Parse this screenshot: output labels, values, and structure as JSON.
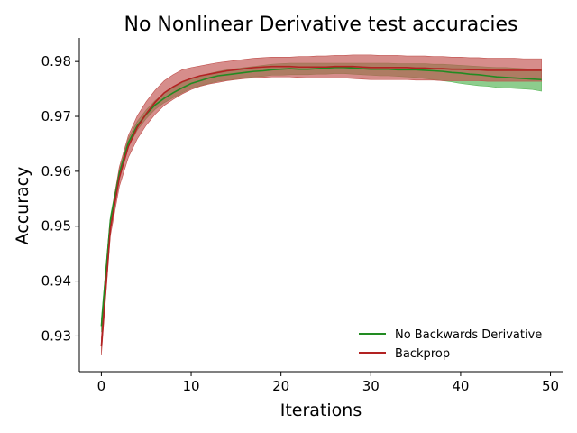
{
  "chart_data": {
    "type": "line",
    "title": "No Nonlinear Derivative test accuracies",
    "xlabel": "Iterations",
    "ylabel": "Accuracy",
    "xlim": [
      -2.45,
      51.45
    ],
    "ylim": [
      0.9235,
      0.9843
    ],
    "xticks": [
      0,
      10,
      20,
      30,
      40,
      50
    ],
    "yticks": [
      0.93,
      0.94,
      0.95,
      0.96,
      0.97,
      0.98
    ],
    "xtick_labels": [
      "0",
      "10",
      "20",
      "30",
      "40",
      "50"
    ],
    "ytick_labels": [
      "0.93",
      "0.94",
      "0.95",
      "0.96",
      "0.97",
      "0.98"
    ],
    "grid": false,
    "legend_position": "lower-right",
    "x": [
      0,
      1,
      2,
      3,
      4,
      5,
      6,
      7,
      8,
      9,
      10,
      11,
      12,
      13,
      14,
      15,
      16,
      17,
      18,
      19,
      20,
      21,
      22,
      23,
      24,
      25,
      26,
      27,
      28,
      29,
      30,
      31,
      32,
      33,
      34,
      35,
      36,
      37,
      38,
      39,
      40,
      41,
      42,
      43,
      44,
      45,
      46,
      47,
      48,
      49
    ],
    "series": [
      {
        "name": "No Backwards Derivative",
        "color": "#228B22",
        "band_color": "#5cb85c",
        "values": [
          0.9318,
          0.951,
          0.9596,
          0.9652,
          0.9683,
          0.9704,
          0.9721,
          0.9733,
          0.9743,
          0.9752,
          0.976,
          0.9765,
          0.977,
          0.9774,
          0.9776,
          0.9778,
          0.978,
          0.9782,
          0.9783,
          0.9785,
          0.9786,
          0.9787,
          0.9786,
          0.9786,
          0.9787,
          0.9788,
          0.9789,
          0.9789,
          0.9788,
          0.9787,
          0.9786,
          0.9786,
          0.9786,
          0.9785,
          0.9785,
          0.9785,
          0.9784,
          0.9783,
          0.9782,
          0.978,
          0.9779,
          0.9777,
          0.9776,
          0.9774,
          0.9772,
          0.9771,
          0.977,
          0.9769,
          0.9768,
          0.9767
        ],
        "lower": [
          0.9307,
          0.9503,
          0.959,
          0.9645,
          0.9675,
          0.9696,
          0.9713,
          0.9725,
          0.9734,
          0.9743,
          0.9751,
          0.9756,
          0.976,
          0.9764,
          0.9766,
          0.9768,
          0.977,
          0.9772,
          0.9773,
          0.9775,
          0.9775,
          0.9776,
          0.9776,
          0.9776,
          0.9777,
          0.9777,
          0.9778,
          0.9778,
          0.9777,
          0.9776,
          0.9775,
          0.9774,
          0.9774,
          0.9773,
          0.9772,
          0.9771,
          0.9769,
          0.9767,
          0.9765,
          0.9763,
          0.976,
          0.9758,
          0.9756,
          0.9755,
          0.9753,
          0.9752,
          0.9751,
          0.975,
          0.9749,
          0.9746
        ],
        "upper": [
          0.9332,
          0.9518,
          0.9603,
          0.966,
          0.9691,
          0.9712,
          0.9729,
          0.9742,
          0.9752,
          0.9761,
          0.9768,
          0.9773,
          0.9778,
          0.9782,
          0.9785,
          0.9787,
          0.9789,
          0.9791,
          0.9793,
          0.9795,
          0.9796,
          0.9797,
          0.9797,
          0.9797,
          0.9797,
          0.9797,
          0.9797,
          0.9797,
          0.9797,
          0.9797,
          0.9797,
          0.9797,
          0.9797,
          0.9796,
          0.9796,
          0.9796,
          0.9796,
          0.9795,
          0.9795,
          0.9794,
          0.9793,
          0.9792,
          0.9791,
          0.979,
          0.9789,
          0.9789,
          0.9788,
          0.9787,
          0.9786,
          0.9785
        ]
      },
      {
        "name": "Backprop",
        "color": "#B22222",
        "band_color": "#c0504d",
        "values": [
          0.9281,
          0.9495,
          0.9588,
          0.9645,
          0.968,
          0.9705,
          0.9726,
          0.9743,
          0.9754,
          0.9763,
          0.9769,
          0.9774,
          0.9777,
          0.978,
          0.9783,
          0.9785,
          0.9787,
          0.9789,
          0.979,
          0.9791,
          0.9791,
          0.9791,
          0.979,
          0.979,
          0.979,
          0.979,
          0.9791,
          0.9791,
          0.9791,
          0.979,
          0.9789,
          0.9789,
          0.9789,
          0.9789,
          0.9789,
          0.9788,
          0.9788,
          0.9787,
          0.9787,
          0.9786,
          0.9786,
          0.9785,
          0.9785,
          0.9784,
          0.9784,
          0.9784,
          0.9784,
          0.9784,
          0.9784,
          0.9784
        ],
        "lower": [
          0.9265,
          0.9482,
          0.9572,
          0.9625,
          0.9659,
          0.9684,
          0.9704,
          0.972,
          0.9731,
          0.9741,
          0.9749,
          0.9755,
          0.9759,
          0.9762,
          0.9765,
          0.9767,
          0.9769,
          0.977,
          0.9771,
          0.9772,
          0.9772,
          0.9772,
          0.9771,
          0.977,
          0.977,
          0.977,
          0.977,
          0.977,
          0.9769,
          0.9768,
          0.9767,
          0.9767,
          0.9767,
          0.9767,
          0.9767,
          0.9766,
          0.9766,
          0.9766,
          0.9765,
          0.9765,
          0.9765,
          0.9765,
          0.9765,
          0.9764,
          0.9764,
          0.9764,
          0.9764,
          0.9764,
          0.9764,
          0.9764
        ],
        "upper": [
          0.9297,
          0.9512,
          0.9608,
          0.9665,
          0.9701,
          0.9727,
          0.9748,
          0.9765,
          0.9776,
          0.9785,
          0.9789,
          0.9792,
          0.9795,
          0.9798,
          0.98,
          0.9802,
          0.9804,
          0.9806,
          0.9807,
          0.9808,
          0.9808,
          0.9808,
          0.9809,
          0.9809,
          0.981,
          0.981,
          0.9811,
          0.9811,
          0.9812,
          0.9812,
          0.9812,
          0.9811,
          0.9811,
          0.9811,
          0.981,
          0.981,
          0.981,
          0.9809,
          0.9809,
          0.9808,
          0.9808,
          0.9807,
          0.9807,
          0.9806,
          0.9806,
          0.9806,
          0.9806,
          0.9805,
          0.9805,
          0.9805
        ]
      }
    ]
  }
}
